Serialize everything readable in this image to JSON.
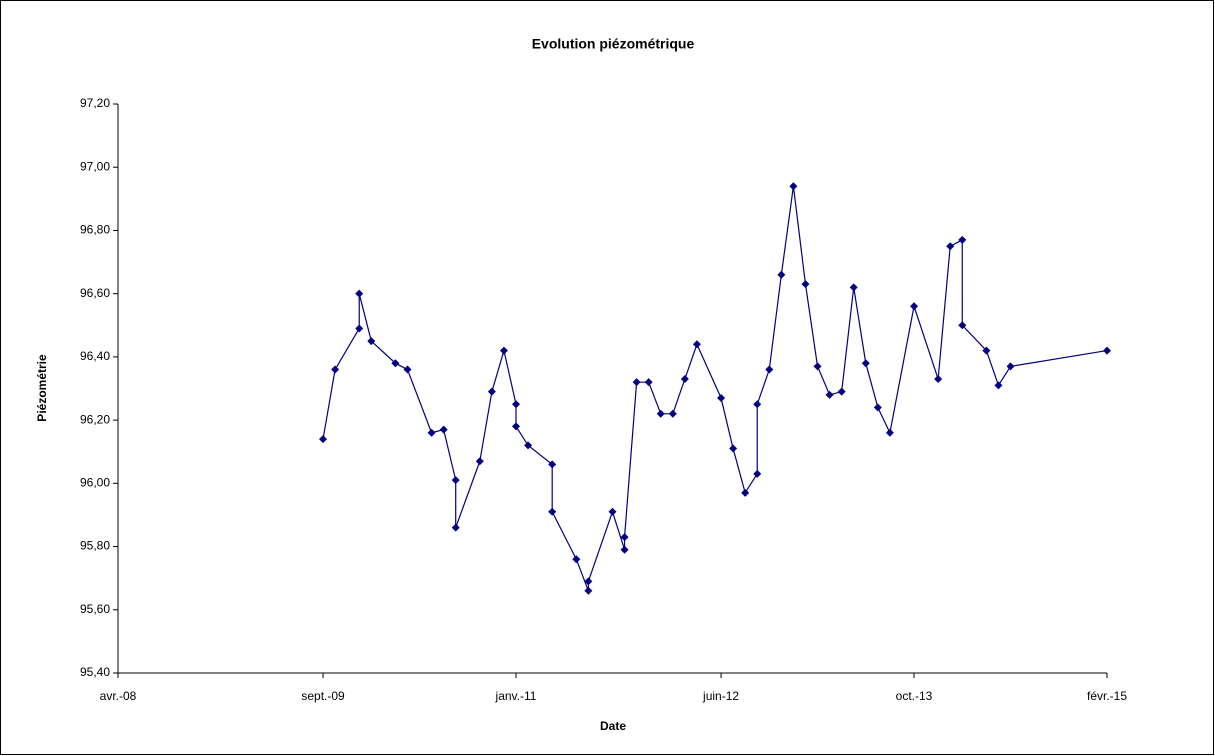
{
  "chart_data": {
    "type": "line",
    "title": "Evolution piézométrique",
    "xlabel": "Date",
    "ylabel": "Piézométrie",
    "color": "#000080",
    "marker": "diamond",
    "xlim": [
      "2008-04",
      "2015-02"
    ],
    "xticks": [
      {
        "value": "2008-04",
        "label": "avr.-08"
      },
      {
        "value": "2009-09",
        "label": "sept.-09"
      },
      {
        "value": "2011-01",
        "label": "janv.-11"
      },
      {
        "value": "2012-06",
        "label": "juin-12"
      },
      {
        "value": "2013-10",
        "label": "oct.-13"
      },
      {
        "value": "2015-02",
        "label": "févr.-15"
      }
    ],
    "ylim": [
      95.4,
      97.2
    ],
    "yticks": [
      {
        "value": 95.4,
        "label": "95,40"
      },
      {
        "value": 95.6,
        "label": "95,60"
      },
      {
        "value": 95.8,
        "label": "95,80"
      },
      {
        "value": 96.0,
        "label": "96,00"
      },
      {
        "value": 96.2,
        "label": "96,20"
      },
      {
        "value": 96.4,
        "label": "96,40"
      },
      {
        "value": 96.6,
        "label": "96,60"
      },
      {
        "value": 96.8,
        "label": "96,80"
      },
      {
        "value": 97.0,
        "label": "97,00"
      },
      {
        "value": 97.2,
        "label": "97,20"
      }
    ],
    "x": [
      "2009-09",
      "2009-10",
      "2009-12",
      "2009-12",
      "2010-01",
      "2010-03",
      "2010-04",
      "2010-06",
      "2010-07",
      "2010-08",
      "2010-08",
      "2010-10",
      "2010-11",
      "2010-12",
      "2011-01",
      "2011-01",
      "2011-02",
      "2011-04",
      "2011-04",
      "2011-06",
      "2011-07",
      "2011-07",
      "2011-09",
      "2011-10",
      "2011-10",
      "2011-11",
      "2011-12",
      "2012-01",
      "2012-02",
      "2012-03",
      "2012-04",
      "2012-06",
      "2012-07",
      "2012-08",
      "2012-09",
      "2012-09",
      "2012-10",
      "2012-11",
      "2012-12",
      "2013-01",
      "2013-02",
      "2013-03",
      "2013-04",
      "2013-05",
      "2013-06",
      "2013-07",
      "2013-08",
      "2013-10",
      "2013-12",
      "2014-01",
      "2014-02",
      "2014-02",
      "2014-04",
      "2014-05",
      "2014-06",
      "2015-02"
    ],
    "values": [
      96.14,
      96.36,
      96.49,
      96.6,
      96.45,
      96.38,
      96.36,
      96.16,
      96.17,
      96.01,
      95.86,
      96.07,
      96.29,
      96.42,
      96.25,
      96.18,
      96.12,
      96.06,
      95.91,
      95.76,
      95.66,
      95.69,
      95.91,
      95.79,
      95.83,
      96.32,
      96.32,
      96.22,
      96.22,
      96.33,
      96.44,
      96.27,
      96.11,
      95.97,
      96.03,
      96.25,
      96.36,
      96.66,
      96.94,
      96.63,
      96.37,
      96.28,
      96.29,
      96.62,
      96.38,
      96.24,
      96.16,
      96.56,
      96.33,
      96.75,
      96.77,
      96.5,
      96.42,
      96.31,
      96.37,
      96.42
    ]
  }
}
